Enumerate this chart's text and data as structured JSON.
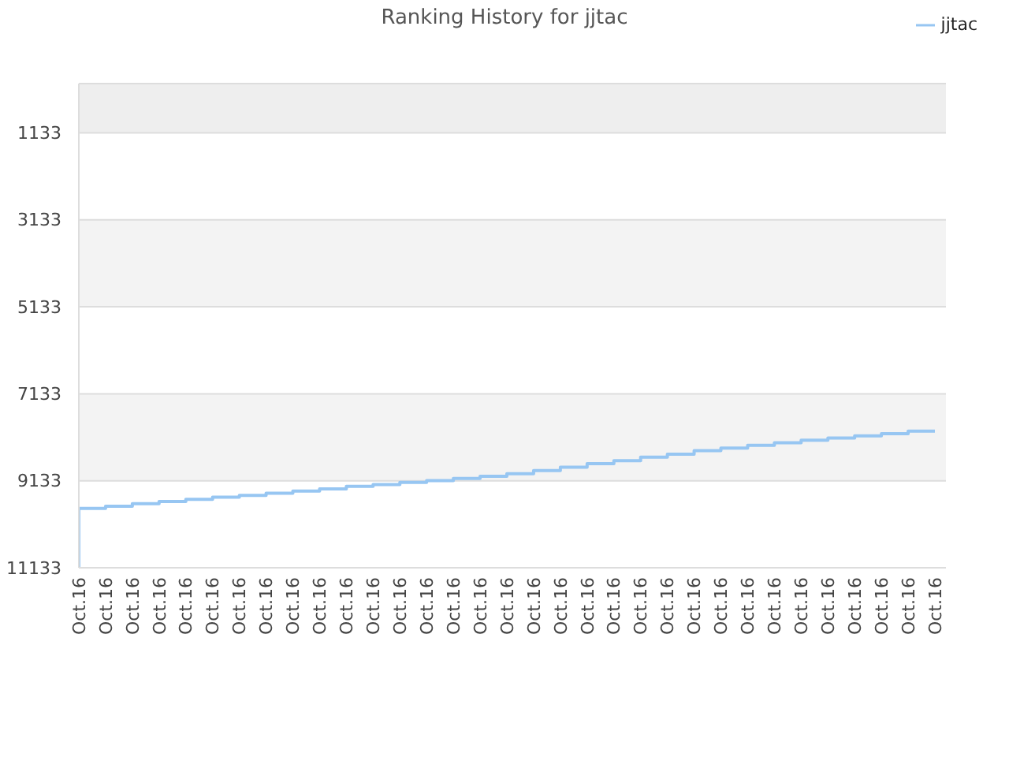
{
  "chart_data": {
    "type": "step",
    "title": "Ranking History for jjtac",
    "categories": [
      "Oct.16",
      "Oct.16",
      "Oct.16",
      "Oct.16",
      "Oct.16",
      "Oct.16",
      "Oct.16",
      "Oct.16",
      "Oct.16",
      "Oct.16",
      "Oct.16",
      "Oct.16",
      "Oct.16",
      "Oct.16",
      "Oct.16",
      "Oct.16",
      "Oct.16",
      "Oct.16",
      "Oct.16",
      "Oct.16",
      "Oct.16",
      "Oct.16",
      "Oct.16",
      "Oct.16",
      "Oct.16",
      "Oct.16",
      "Oct.16",
      "Oct.16",
      "Oct.16",
      "Oct.16",
      "Oct.16",
      "Oct.16",
      "Oct.16"
    ],
    "series": [
      {
        "name": "jjtac",
        "color": "#97c6f2",
        "values": [
          11130,
          9770,
          9720,
          9660,
          9610,
          9560,
          9510,
          9470,
          9420,
          9370,
          9320,
          9260,
          9220,
          9170,
          9130,
          9080,
          9030,
          8970,
          8900,
          8820,
          8740,
          8670,
          8590,
          8520,
          8440,
          8380,
          8320,
          8260,
          8200,
          8150,
          8100,
          8050,
          7990
        ]
      }
    ],
    "ylim": [
      11133,
      0
    ],
    "yticks": [
      1133,
      3133,
      5133,
      7133,
      9133,
      11133
    ],
    "grid": "y",
    "legend": "top right"
  }
}
